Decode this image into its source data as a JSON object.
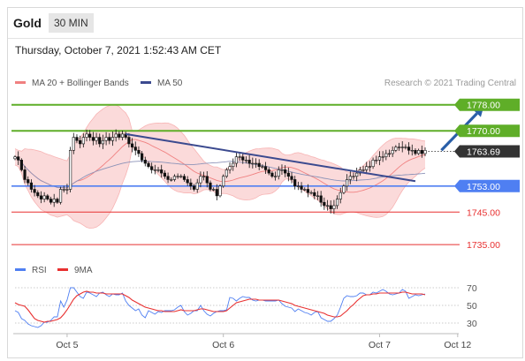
{
  "header": {
    "symbol": "Gold",
    "interval": "30 MIN"
  },
  "timestamp": "Thursday, October 7, 2021 1:52:43 AM CET",
  "credit": "Research © 2021 Trading Central",
  "colors": {
    "bollinger": "#f08080",
    "bollinger_fill": "#fbdada",
    "ma50": "#3b4a8f",
    "green": "#5fae28",
    "blue": "#4f7ff2",
    "red": "#e83030",
    "rsi": "#4f7ff2",
    "rsi_ma": "#e83030",
    "price_box": "#333333",
    "candle": "#111111"
  },
  "chart_data": [
    {
      "type": "candlestick",
      "legend": [
        {
          "name": "MA 20 + Bollinger Bands",
          "color": "#f08080"
        },
        {
          "name": "MA 50",
          "color": "#3b4a8f"
        }
      ],
      "ylim": [
        1731.5,
        1782
      ],
      "x_ticks": [
        {
          "label": "Oct 5",
          "index": 16
        },
        {
          "label": "Oct 6",
          "index": 64
        },
        {
          "label": "Oct 7",
          "index": 112
        },
        {
          "label": "Oct 12",
          "index": 136
        }
      ],
      "levels": [
        {
          "value": 1778.0,
          "label": "1778.00",
          "style": "resistance",
          "boxed": true
        },
        {
          "value": 1770.0,
          "label": "1770.00",
          "style": "resistance",
          "boxed": true
        },
        {
          "value": 1763.69,
          "label": "1763.69",
          "style": "last",
          "boxed": true
        },
        {
          "value": 1753.0,
          "label": "1753.00",
          "style": "pivot",
          "boxed": true
        },
        {
          "value": 1745.0,
          "label": "1745.00",
          "style": "support",
          "boxed": false
        },
        {
          "value": 1735.0,
          "label": "1735.00",
          "style": "support",
          "boxed": false
        }
      ],
      "trendline": [
        {
          "index": 34,
          "value": 1769
        },
        {
          "index": 123,
          "value": 1754.5
        }
      ],
      "forecast_arrow": [
        {
          "index": 131,
          "value": 1764
        },
        {
          "index": 144,
          "value": 1777.5
        }
      ],
      "close": [
        1762,
        1761,
        1758,
        1755,
        1754,
        1752,
        1751,
        1750,
        1749,
        1750,
        1749,
        1748,
        1749,
        1748,
        1752,
        1752,
        1752,
        1764,
        1768,
        1767,
        1766,
        1768,
        1769,
        1768,
        1767,
        1768,
        1766,
        1767,
        1768,
        1767,
        1768,
        1769,
        1768,
        1769,
        1768,
        1766,
        1765,
        1764,
        1763,
        1761,
        1760,
        1759,
        1758,
        1758,
        1758,
        1757,
        1756,
        1755,
        1755,
        1756,
        1756,
        1756,
        1755,
        1754,
        1753,
        1752,
        1754,
        1756,
        1756,
        1754,
        1752,
        1752,
        1750,
        1753,
        1756,
        1758,
        1759,
        1760,
        1762,
        1762,
        1761,
        1761,
        1760,
        1760,
        1760,
        1759,
        1759,
        1758,
        1757,
        1756,
        1756,
        1758,
        1758,
        1757,
        1756,
        1755,
        1753,
        1753,
        1752,
        1752,
        1751,
        1751,
        1750,
        1750,
        1748,
        1747,
        1747,
        1746,
        1747,
        1749,
        1751,
        1753,
        1755,
        1756,
        1756,
        1757,
        1758,
        1758,
        1759,
        1759,
        1761,
        1761,
        1762,
        1762,
        1763,
        1763,
        1764,
        1765,
        1765,
        1765,
        1765,
        1764,
        1764,
        1763,
        1764,
        1763,
        1764
      ]
    },
    {
      "type": "line",
      "legend": [
        {
          "name": "RSI",
          "color": "#4f7ff2"
        },
        {
          "name": "9MA",
          "color": "#e83030"
        }
      ],
      "ylim": [
        18,
        80
      ],
      "y_ticks": [
        70,
        50,
        30
      ],
      "series": [
        {
          "name": "RSI",
          "values": [
            44,
            42,
            35,
            33,
            29,
            27,
            26,
            25,
            27,
            31,
            31,
            33,
            37,
            37,
            55,
            48,
            56,
            70,
            70,
            65,
            60,
            58,
            65,
            64,
            62,
            60,
            64,
            65,
            62,
            60,
            63,
            62,
            62,
            64,
            55,
            50,
            47,
            44,
            46,
            39,
            36,
            44,
            42,
            40,
            43,
            42,
            44,
            44,
            44,
            45,
            48,
            50,
            43,
            39,
            41,
            44,
            44,
            50,
            44,
            40,
            38,
            41,
            43,
            44,
            44,
            45,
            59,
            58,
            55,
            58,
            60,
            59,
            59,
            56,
            55,
            56,
            56,
            55,
            55,
            55,
            55,
            56,
            52,
            49,
            48,
            47,
            43,
            46,
            44,
            42,
            41,
            39,
            42,
            43,
            36,
            34,
            32,
            32,
            35,
            39,
            48,
            58,
            61,
            60,
            60,
            61,
            64,
            64,
            62,
            62,
            65,
            64,
            66,
            68,
            66,
            63,
            62,
            63,
            64,
            68,
            66,
            58,
            60,
            62,
            61,
            62,
            63
          ]
        },
        {
          "name": "9MA",
          "values": [
            53,
            51,
            50,
            49,
            45,
            40,
            35,
            33,
            32,
            31,
            32,
            32,
            33,
            34,
            36,
            40,
            45,
            51,
            57,
            61,
            63,
            65,
            66,
            65,
            65,
            64,
            64,
            64,
            63,
            63,
            63,
            63,
            63,
            63,
            61,
            59,
            56,
            54,
            52,
            50,
            48,
            47,
            46,
            45,
            44,
            44,
            43,
            43,
            43,
            43,
            44,
            45,
            44,
            44,
            44,
            44,
            45,
            46,
            46,
            45,
            44,
            43,
            43,
            43,
            43,
            44,
            47,
            50,
            53,
            54,
            55,
            56,
            57,
            57,
            57,
            56,
            56,
            56,
            56,
            56,
            56,
            56,
            55,
            54,
            53,
            52,
            50,
            49,
            48,
            47,
            46,
            45,
            44,
            43,
            42,
            41,
            39,
            38,
            37,
            37,
            38,
            41,
            44,
            48,
            51,
            55,
            58,
            61,
            62,
            62,
            63,
            63,
            64,
            64,
            64,
            64,
            64,
            64,
            64,
            65,
            65,
            64,
            63,
            63,
            63,
            63,
            62
          ]
        }
      ]
    }
  ]
}
